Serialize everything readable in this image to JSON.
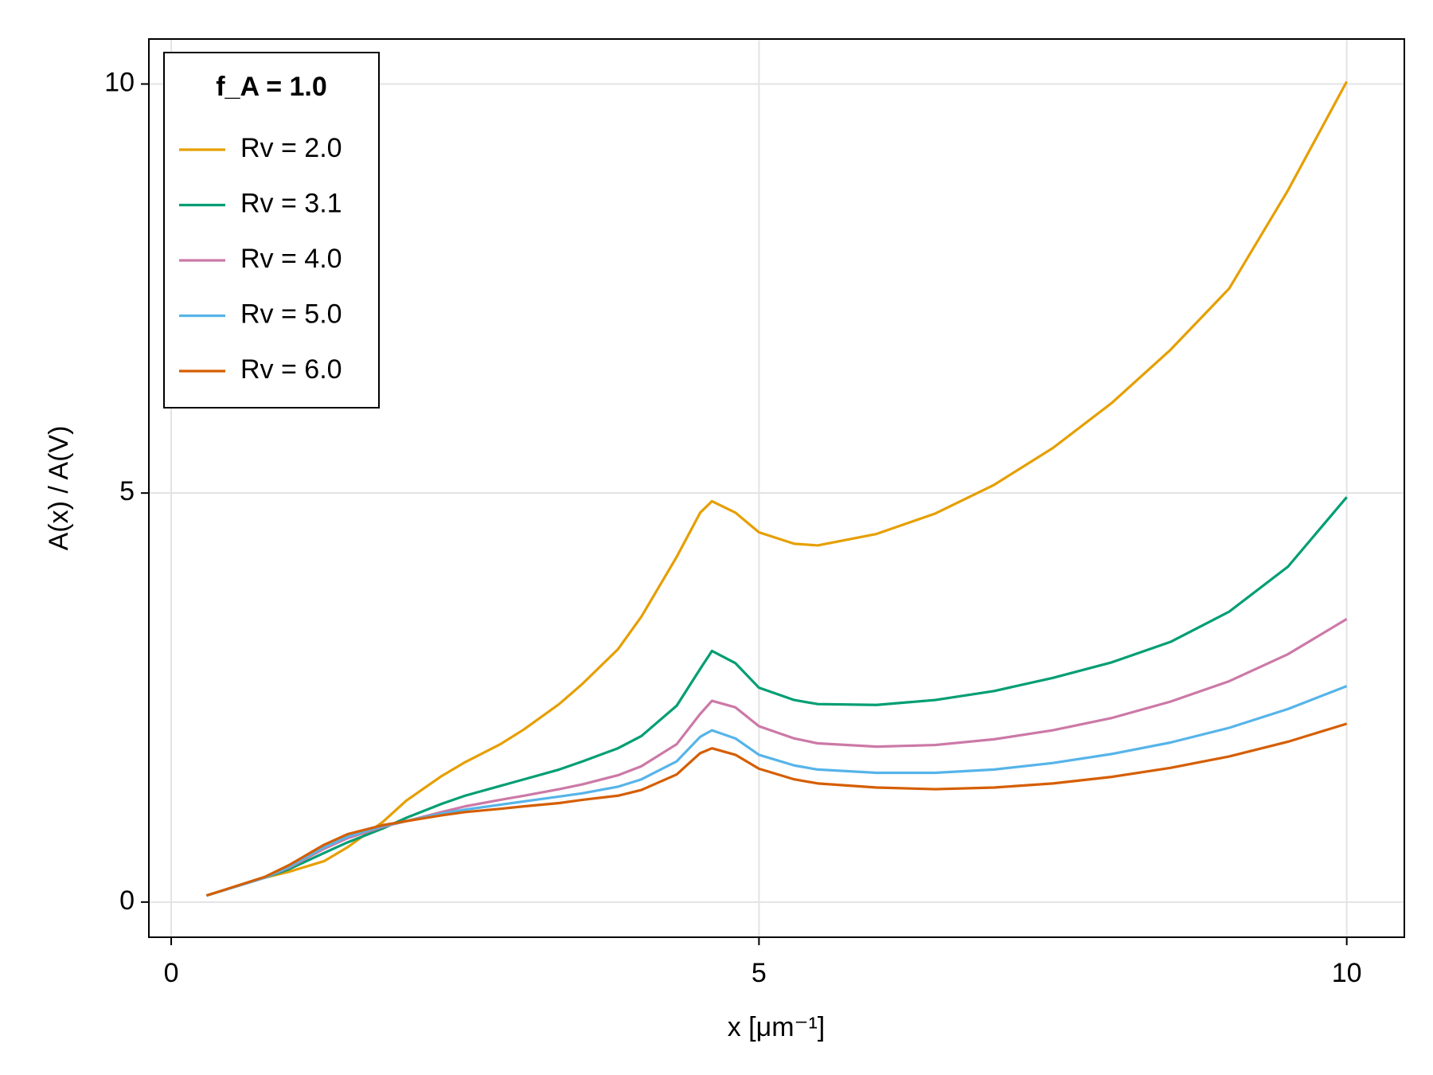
{
  "chart_data": {
    "type": "line",
    "xlabel": "x [μm⁻¹]",
    "ylabel": "A(x) / A(V)",
    "legend_title": "f_A = 1.0",
    "legend": "top-left",
    "grid": true,
    "xlim": [
      -0.19,
      10.49
    ],
    "ylim": [
      -0.43,
      10.55
    ],
    "xticks": [
      0,
      5,
      10
    ],
    "yticks": [
      0,
      5,
      10
    ],
    "x": [
      0.3,
      0.8,
      1.0,
      1.3,
      1.5,
      1.8,
      2.0,
      2.3,
      2.5,
      2.8,
      3.0,
      3.3,
      3.5,
      3.8,
      4.0,
      4.3,
      4.5,
      4.6,
      4.8,
      5.0,
      5.3,
      5.5,
      6.0,
      6.5,
      7.0,
      7.5,
      8.0,
      8.5,
      9.0,
      9.5,
      10.0
    ],
    "series": [
      {
        "name": "Rv = 2.0",
        "color": "#e69f00",
        "values": [
          0.08,
          0.3,
          0.37,
          0.5,
          0.67,
          0.98,
          1.24,
          1.54,
          1.71,
          1.93,
          2.11,
          2.42,
          2.67,
          3.09,
          3.49,
          4.22,
          4.76,
          4.9,
          4.76,
          4.52,
          4.38,
          4.36,
          4.5,
          4.75,
          5.1,
          5.55,
          6.1,
          6.75,
          7.5,
          8.7,
          10.03
        ]
      },
      {
        "name": "Rv = 3.1",
        "color": "#009e73",
        "values": [
          0.08,
          0.3,
          0.4,
          0.6,
          0.73,
          0.9,
          1.03,
          1.2,
          1.3,
          1.42,
          1.5,
          1.62,
          1.72,
          1.88,
          2.03,
          2.4,
          2.85,
          3.07,
          2.92,
          2.62,
          2.47,
          2.42,
          2.41,
          2.47,
          2.58,
          2.74,
          2.93,
          3.18,
          3.55,
          4.1,
          4.95
        ]
      },
      {
        "name": "Rv = 4.0",
        "color": "#cc79a7",
        "values": [
          0.08,
          0.3,
          0.42,
          0.65,
          0.78,
          0.92,
          0.99,
          1.1,
          1.17,
          1.25,
          1.3,
          1.38,
          1.44,
          1.55,
          1.66,
          1.93,
          2.3,
          2.46,
          2.38,
          2.15,
          2.0,
          1.94,
          1.9,
          1.92,
          1.99,
          2.1,
          2.25,
          2.45,
          2.7,
          3.03,
          3.46
        ]
      },
      {
        "name": "Rv = 5.0",
        "color": "#56b4e9",
        "values": [
          0.08,
          0.3,
          0.43,
          0.67,
          0.8,
          0.93,
          0.99,
          1.08,
          1.13,
          1.19,
          1.23,
          1.29,
          1.33,
          1.41,
          1.5,
          1.72,
          2.02,
          2.1,
          2.0,
          1.8,
          1.67,
          1.62,
          1.58,
          1.58,
          1.62,
          1.7,
          1.81,
          1.95,
          2.13,
          2.36,
          2.64
        ]
      },
      {
        "name": "Rv = 6.0",
        "color": "#d55e00",
        "values": [
          0.08,
          0.31,
          0.45,
          0.7,
          0.83,
          0.94,
          0.99,
          1.06,
          1.1,
          1.14,
          1.17,
          1.21,
          1.25,
          1.3,
          1.37,
          1.56,
          1.82,
          1.88,
          1.8,
          1.63,
          1.5,
          1.45,
          1.4,
          1.38,
          1.4,
          1.45,
          1.53,
          1.64,
          1.78,
          1.96,
          2.18
        ]
      }
    ]
  }
}
